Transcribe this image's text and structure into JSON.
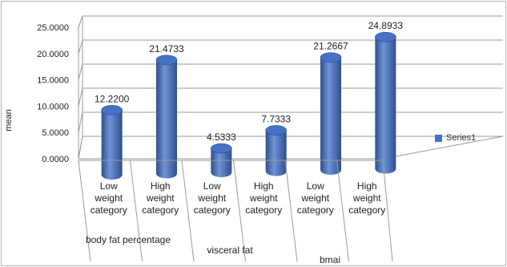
{
  "chart_data": {
    "type": "bar",
    "ylabel": "mean",
    "ylim": [
      0,
      25
    ],
    "yticks": [
      "0.0000",
      "5.0000",
      "10.0000",
      "15.0000",
      "20.0000",
      "25.0000"
    ],
    "categories": [
      [
        "Low",
        "weight",
        "category"
      ],
      [
        "High",
        "weight",
        "category"
      ],
      [
        "Low",
        "weight",
        "category"
      ],
      [
        "High",
        "weight",
        "category"
      ],
      [
        "Low",
        "weight",
        "category"
      ],
      [
        "High",
        "weight",
        "category"
      ]
    ],
    "groups": [
      "body fat percentage",
      "visceral fat",
      "bmai"
    ],
    "series": [
      {
        "name": "Series1",
        "values": [
          12.22,
          21.4733,
          4.5333,
          7.7333,
          21.2667,
          24.8933
        ],
        "data_labels": [
          "12.2200",
          "21.4733",
          "4.5333",
          "7.7333",
          "21.2667",
          "24.8933"
        ]
      }
    ],
    "legend_position": "right",
    "grid": true,
    "colors": {
      "bar": "#4472c4",
      "bar_dark": "#2e4f8f",
      "bar_light": "#6f93d6",
      "grid": "#9a9a9a"
    }
  }
}
